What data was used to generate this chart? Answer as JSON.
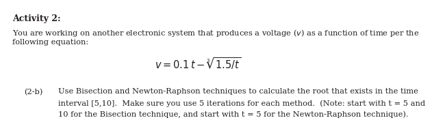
{
  "title": "Activity 2:",
  "line1": "You are working on another electronic system that produces a voltage ($v$) as a function of time per the",
  "line2": "following equation:",
  "equation": "$v = 0.1\\,t - \\sqrt[3]{1.5/t}$",
  "sub_label": "(2-b)",
  "sub_text1": "Use Bisection and Newton-Raphson techniques to calculate the root that exists in the time",
  "sub_text2": "interval [5,10].  Make sure you use 5 iterations for each method.  (Note: start with t = 5 and",
  "sub_text3": "10 for the Bisection technique, and start with t = 5 for the Newton-Raphson technique).",
  "bg_color": "#ffffff",
  "text_color": "#231f20",
  "font_size_title": 9.0,
  "font_size_body": 8.2,
  "font_size_eq": 10.5,
  "fig_width": 5.58,
  "fig_height": 1.72
}
